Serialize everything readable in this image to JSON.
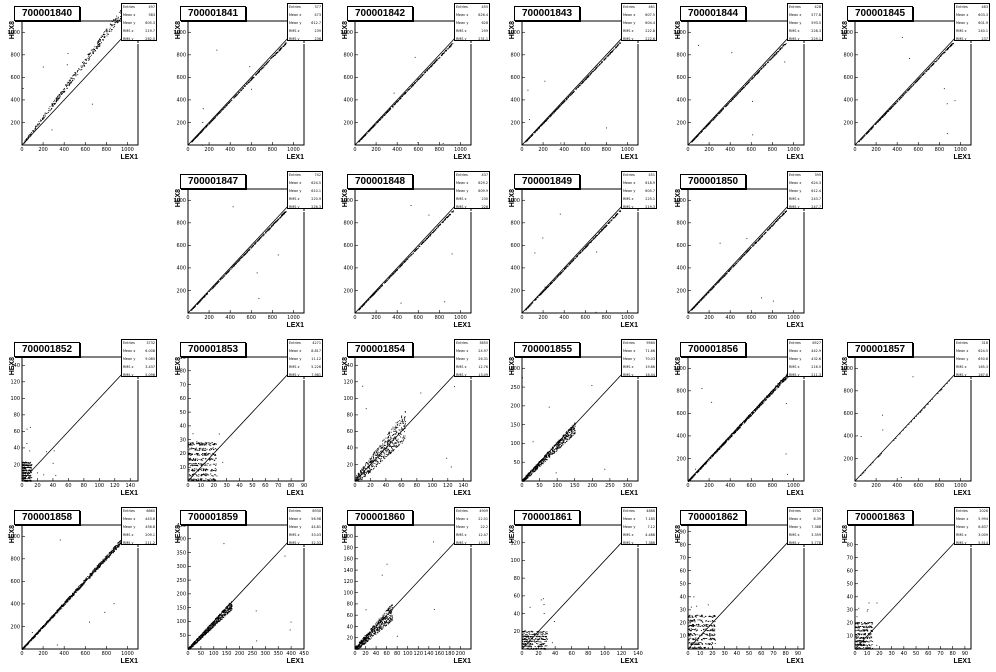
{
  "chart_data": [
    {
      "type": "scatter",
      "title": "700001840",
      "xlabel": "LEX1",
      "ylabel": "HEX8",
      "xlim": [
        0,
        1100
      ],
      "ylim": [
        0,
        1100
      ],
      "xticks": [
        0,
        200,
        400,
        600,
        800,
        1000
      ],
      "yticks": [
        200,
        400,
        600,
        800,
        1000
      ],
      "diagonal": true,
      "spread": {
        "xmin": 20,
        "xmax": 950,
        "slope": 1.25,
        "width": 60,
        "n": 380
      },
      "stats": {
        "entries": "497",
        "mean_x": "583",
        "mean_y": "605.3",
        "rms_x": "219.7",
        "rms_y": "262.5"
      }
    },
    {
      "type": "scatter",
      "title": "700001841",
      "xlabel": "LEX1",
      "ylabel": "HEX8",
      "xlim": [
        0,
        1100
      ],
      "ylim": [
        0,
        1100
      ],
      "xticks": [
        0,
        200,
        400,
        600,
        800,
        1000
      ],
      "yticks": [
        200,
        400,
        600,
        800,
        1000
      ],
      "diagonal": true,
      "spread": {
        "xmin": 30,
        "xmax": 930,
        "slope": 0.98,
        "width": 10,
        "n": 360
      },
      "stats": {
        "entries": "377",
        "mean_x": "473",
        "mean_y": "612.7",
        "rms_x": "239",
        "rms_y": "236"
      }
    },
    {
      "type": "scatter",
      "title": "700001842",
      "xlabel": "LEX1",
      "ylabel": "HEX8",
      "xlim": [
        0,
        1100
      ],
      "ylim": [
        0,
        1100
      ],
      "xticks": [
        0,
        200,
        400,
        600,
        800,
        1000
      ],
      "yticks": [
        200,
        400,
        600,
        800,
        1000
      ],
      "diagonal": true,
      "spread": {
        "xmin": 30,
        "xmax": 930,
        "slope": 0.98,
        "width": 10,
        "n": 380
      },
      "stats": {
        "entries": "455",
        "mean_x": "626.4",
        "mean_y": "628",
        "rms_x": "259",
        "rms_y": "231.1"
      }
    },
    {
      "type": "scatter",
      "title": "700001843",
      "xlabel": "LEX1",
      "ylabel": "HEX8",
      "xlim": [
        0,
        1100
      ],
      "ylim": [
        0,
        1100
      ],
      "xticks": [
        0,
        200,
        400,
        600,
        800,
        1000
      ],
      "yticks": [
        200,
        400,
        600,
        800,
        1000
      ],
      "diagonal": true,
      "spread": {
        "xmin": 30,
        "xmax": 930,
        "slope": 0.98,
        "width": 10,
        "n": 380
      },
      "stats": {
        "entries": "461",
        "mean_x": "607.5",
        "mean_y": "604.4",
        "rms_x": "222.8",
        "rms_y": "222.6"
      }
    },
    {
      "type": "scatter",
      "title": "700001844",
      "xlabel": "LEX1",
      "ylabel": "HEX8",
      "xlim": [
        0,
        1100
      ],
      "ylim": [
        0,
        1100
      ],
      "xticks": [
        0,
        200,
        400,
        600,
        800,
        1000
      ],
      "yticks": [
        200,
        400,
        600,
        800,
        1000
      ],
      "diagonal": true,
      "spread": {
        "xmin": 30,
        "xmax": 930,
        "slope": 0.98,
        "width": 10,
        "n": 380
      },
      "stats": {
        "entries": "428",
        "mean_x": "577.8",
        "mean_y": "593.5",
        "rms_x": "228.3",
        "rms_y": "229.1"
      }
    },
    {
      "type": "scatter",
      "title": "700001845",
      "xlabel": "LEX1",
      "ylabel": "HEX8",
      "xlim": [
        0,
        1100
      ],
      "ylim": [
        0,
        1100
      ],
      "xticks": [
        0,
        200,
        400,
        600,
        800,
        1000
      ],
      "yticks": [
        200,
        400,
        600,
        800,
        1000
      ],
      "diagonal": true,
      "spread": {
        "xmin": 30,
        "xmax": 930,
        "slope": 0.98,
        "width": 10,
        "n": 380
      },
      "stats": {
        "entries": "483",
        "mean_x": "603.3",
        "mean_y": "601.9",
        "rms_x": "240.1",
        "rms_y": "237"
      }
    },
    {
      "type": "scatter",
      "title": "700001847",
      "xlabel": "LEX1",
      "ylabel": "HEX8",
      "xlim": [
        0,
        1100
      ],
      "ylim": [
        0,
        1100
      ],
      "xticks": [
        0,
        200,
        400,
        600,
        800,
        1000
      ],
      "yticks": [
        200,
        400,
        600,
        800,
        1000
      ],
      "diagonal": true,
      "spread": {
        "xmin": 30,
        "xmax": 930,
        "slope": 0.98,
        "width": 10,
        "n": 380
      },
      "stats": {
        "entries": "742",
        "mean_x": "624.5",
        "mean_y": "610.1",
        "rms_x": "220.9",
        "rms_y": "226.3"
      }
    },
    {
      "type": "scatter",
      "title": "700001848",
      "xlabel": "LEX1",
      "ylabel": "HEX8",
      "xlim": [
        0,
        1100
      ],
      "ylim": [
        0,
        1100
      ],
      "xticks": [
        0,
        200,
        400,
        600,
        800,
        1000
      ],
      "yticks": [
        200,
        400,
        600,
        800,
        1000
      ],
      "diagonal": true,
      "spread": {
        "xmin": 30,
        "xmax": 930,
        "slope": 0.98,
        "width": 10,
        "n": 380
      },
      "stats": {
        "entries": "437",
        "mean_x": "629.2",
        "mean_y": "609.9",
        "rms_x": "230",
        "rms_y": "226"
      }
    },
    {
      "type": "scatter",
      "title": "700001849",
      "xlabel": "LEX1",
      "ylabel": "HEX8",
      "xlim": [
        0,
        1100
      ],
      "ylim": [
        0,
        1100
      ],
      "xticks": [
        0,
        200,
        400,
        600,
        800,
        1000
      ],
      "yticks": [
        200,
        400,
        600,
        800,
        1000
      ],
      "diagonal": true,
      "spread": {
        "xmin": 30,
        "xmax": 930,
        "slope": 0.98,
        "width": 10,
        "n": 380
      },
      "stats": {
        "entries": "451",
        "mean_x": "618.9",
        "mean_y": "605.7",
        "rms_x": "225.1",
        "rms_y": "219.3"
      }
    },
    {
      "type": "scatter",
      "title": "700001850",
      "xlabel": "LEX1",
      "ylabel": "HEX8",
      "xlim": [
        0,
        1100
      ],
      "ylim": [
        0,
        1100
      ],
      "xticks": [
        0,
        200,
        400,
        600,
        800,
        1000
      ],
      "yticks": [
        200,
        400,
        600,
        800,
        1000
      ],
      "diagonal": true,
      "spread": {
        "xmin": 30,
        "xmax": 930,
        "slope": 0.98,
        "width": 10,
        "n": 380
      },
      "stats": {
        "entries": "395",
        "mean_x": "624.3",
        "mean_y": "612.4",
        "rms_x": "243.7",
        "rms_y": "247.7"
      }
    },
    {
      "type": "scatter",
      "title": "700001852",
      "xlabel": "LEX1",
      "ylabel": "HEX8",
      "xlim": [
        0,
        150
      ],
      "ylim": [
        0,
        150
      ],
      "xticks": [
        0,
        20,
        40,
        60,
        80,
        100,
        120,
        140
      ],
      "yticks": [
        20,
        40,
        60,
        80,
        100,
        120,
        140
      ],
      "diagonal": true,
      "blob": {
        "xmin": 0,
        "xmax": 12,
        "ymin": 0,
        "ymax": 25,
        "n": 260
      },
      "stats": {
        "entries": "3732",
        "mean_x": "6.008",
        "mean_y": "9.085",
        "rms_x": "3.437",
        "rms_y": "5.096"
      }
    },
    {
      "type": "scatter",
      "title": "700001853",
      "xlabel": "LEX1",
      "ylabel": "HEX8",
      "xlim": [
        0,
        90
      ],
      "ylim": [
        0,
        90
      ],
      "xticks": [
        0,
        10,
        20,
        30,
        40,
        50,
        60,
        70,
        80,
        90
      ],
      "yticks": [
        10,
        20,
        30,
        40,
        50,
        60,
        70,
        80,
        90
      ],
      "diagonal": true,
      "blob": {
        "xmin": 0,
        "xmax": 22,
        "ymin": 0,
        "ymax": 30,
        "n": 420
      },
      "stats": {
        "entries": "4271",
        "mean_x": "8.817",
        "mean_y": "11.12",
        "rms_x": "5.226",
        "rms_y": "7.981"
      }
    },
    {
      "type": "scatter",
      "title": "700001854",
      "xlabel": "LEX1",
      "ylabel": "HEX8",
      "xlim": [
        0,
        150
      ],
      "ylim": [
        0,
        150
      ],
      "xticks": [
        0,
        20,
        40,
        60,
        80,
        100,
        120,
        140
      ],
      "yticks": [
        20,
        40,
        60,
        80,
        100,
        120,
        140
      ],
      "diagonal": true,
      "spread": {
        "xmin": 0,
        "xmax": 65,
        "slope": 1.05,
        "width": 26,
        "n": 520
      },
      "stats": {
        "entries": "3650",
        "mean_x": "24.97",
        "mean_y": "26.31",
        "rms_x": "12.76",
        "rms_y": "13.09"
      }
    },
    {
      "type": "scatter",
      "title": "700001855",
      "xlabel": "LEX1",
      "ylabel": "HEX8",
      "xlim": [
        0,
        330
      ],
      "ylim": [
        0,
        330
      ],
      "xticks": [
        0,
        50,
        100,
        150,
        200,
        250,
        300
      ],
      "yticks": [
        50,
        100,
        150,
        200,
        250,
        300
      ],
      "diagonal": true,
      "spread": {
        "xmin": 0,
        "xmax": 150,
        "slope": 0.95,
        "width": 22,
        "n": 560
      },
      "stats": {
        "entries": "9560",
        "mean_x": "71.66",
        "mean_y": "70.03",
        "rms_x": "19.86",
        "rms_y": "16.44"
      }
    },
    {
      "type": "scatter",
      "title": "700001856",
      "xlabel": "LEX1",
      "ylabel": "HEX8",
      "xlim": [
        0,
        1100
      ],
      "ylim": [
        0,
        1100
      ],
      "xticks": [
        0,
        200,
        400,
        600,
        800,
        1000
      ],
      "yticks": [
        200,
        400,
        600,
        800,
        1000
      ],
      "diagonal": true,
      "spread": {
        "xmin": 0,
        "xmax": 1000,
        "slope": 1.0,
        "width": 30,
        "n": 760
      },
      "stats": {
        "entries": "6527",
        "mean_x": "442.9",
        "mean_y": "432.6",
        "rms_x": "216.5",
        "rms_y": "211.3"
      }
    },
    {
      "type": "scatter",
      "title": "700001857",
      "xlabel": "LEX1",
      "ylabel": "HEX8",
      "xlim": [
        0,
        1100
      ],
      "ylim": [
        0,
        1100
      ],
      "xticks": [
        0,
        200,
        400,
        600,
        800,
        1000
      ],
      "yticks": [
        200,
        400,
        600,
        800,
        1000
      ],
      "diagonal": true,
      "spread": {
        "xmin": 50,
        "xmax": 900,
        "slope": 1.0,
        "width": 6,
        "n": 40
      },
      "stats": {
        "entries": "318",
        "mean_x": "624.5",
        "mean_y": "650.6",
        "rms_x": "165.3",
        "rms_y": "167.6"
      }
    },
    {
      "type": "scatter",
      "title": "700001858",
      "xlabel": "LEX1",
      "ylabel": "HEX8",
      "xlim": [
        0,
        1100
      ],
      "ylim": [
        0,
        1100
      ],
      "xticks": [
        0,
        200,
        400,
        600,
        800,
        1000
      ],
      "yticks": [
        200,
        400,
        600,
        800,
        1000
      ],
      "diagonal": true,
      "spread": {
        "xmin": 0,
        "xmax": 1000,
        "slope": 1.02,
        "width": 36,
        "n": 780
      },
      "stats": {
        "entries": "6860",
        "mean_x": "443.6",
        "mean_y": "456.8",
        "rms_x": "209.1",
        "rms_y": "211.2"
      }
    },
    {
      "type": "scatter",
      "title": "700001859",
      "xlabel": "LEX1",
      "ylabel": "HEX8",
      "xlim": [
        0,
        450
      ],
      "ylim": [
        0,
        450
      ],
      "xticks": [
        0,
        50,
        100,
        150,
        200,
        250,
        300,
        350,
        400,
        450
      ],
      "yticks": [
        50,
        100,
        150,
        200,
        250,
        300,
        350,
        400,
        450
      ],
      "diagonal": true,
      "spread": {
        "xmin": 0,
        "xmax": 170,
        "slope": 0.95,
        "width": 24,
        "n": 600
      },
      "stats": {
        "entries": "8930",
        "mean_x": "56.98",
        "mean_y": "44.81",
        "rms_x": "33.03",
        "rms_y": "32.33"
      }
    },
    {
      "type": "scatter",
      "title": "700001860",
      "xlabel": "LEX1",
      "ylabel": "HEX8",
      "xlim": [
        0,
        220
      ],
      "ylim": [
        0,
        220
      ],
      "xticks": [
        0,
        20,
        40,
        60,
        80,
        100,
        120,
        140,
        160,
        180,
        200
      ],
      "yticks": [
        20,
        40,
        60,
        80,
        100,
        120,
        140,
        160,
        180,
        200
      ],
      "diagonal": true,
      "spread": {
        "xmin": 0,
        "xmax": 70,
        "slope": 0.95,
        "width": 22,
        "n": 520
      },
      "stats": {
        "entries": "4909",
        "mean_x": "22.01",
        "mean_y": "22.2",
        "rms_x": "12.47",
        "rms_y": "13.01"
      }
    },
    {
      "type": "scatter",
      "title": "700001861",
      "xlabel": "LEX1",
      "ylabel": "HEX8",
      "xlim": [
        0,
        140
      ],
      "ylim": [
        0,
        140
      ],
      "xticks": [
        0,
        20,
        40,
        60,
        80,
        100,
        120,
        140
      ],
      "yticks": [
        20,
        40,
        60,
        80,
        100,
        120
      ],
      "diagonal": true,
      "blob": {
        "xmin": 0,
        "xmax": 30,
        "ymin": 0,
        "ymax": 22,
        "n": 300
      },
      "stats": {
        "entries": "4886",
        "mean_x": "7.185",
        "mean_y": "7.12",
        "rms_x": "4.486",
        "rms_y": "7.386"
      }
    },
    {
      "type": "scatter",
      "title": "700001862",
      "xlabel": "LEX1",
      "ylabel": "HEX8",
      "xlim": [
        0,
        95
      ],
      "ylim": [
        0,
        95
      ],
      "xticks": [
        0,
        10,
        20,
        30,
        40,
        50,
        60,
        70,
        80,
        90
      ],
      "yticks": [
        10,
        20,
        30,
        40,
        50,
        60,
        70,
        80,
        90
      ],
      "diagonal": true,
      "blob": {
        "xmin": 0,
        "xmax": 22,
        "ymin": 0,
        "ymax": 28,
        "n": 360
      },
      "stats": {
        "entries": "3737",
        "mean_x": "6.39",
        "mean_y": "7.388",
        "rms_x": "3.359",
        "rms_y": "5.778"
      }
    },
    {
      "type": "scatter",
      "title": "700001863",
      "xlabel": "LEX1",
      "ylabel": "HEX8",
      "xlim": [
        0,
        95
      ],
      "ylim": [
        0,
        95
      ],
      "xticks": [
        0,
        10,
        20,
        30,
        40,
        50,
        60,
        70,
        80,
        90
      ],
      "yticks": [
        10,
        20,
        30,
        40,
        50,
        60,
        70,
        80
      ],
      "diagonal": true,
      "blob": {
        "xmin": 0,
        "xmax": 14,
        "ymin": 0,
        "ymax": 22,
        "n": 280
      },
      "stats": {
        "entries": "2026",
        "mean_x": "5.994",
        "mean_y": "6.837",
        "rms_x": "3.009",
        "rms_y": "5.514"
      }
    }
  ],
  "stat_labels": {
    "entries": "Entries",
    "mean_x": "Mean x",
    "mean_y": "Mean y",
    "rms_x": "RMS x",
    "rms_y": "RMS y"
  }
}
